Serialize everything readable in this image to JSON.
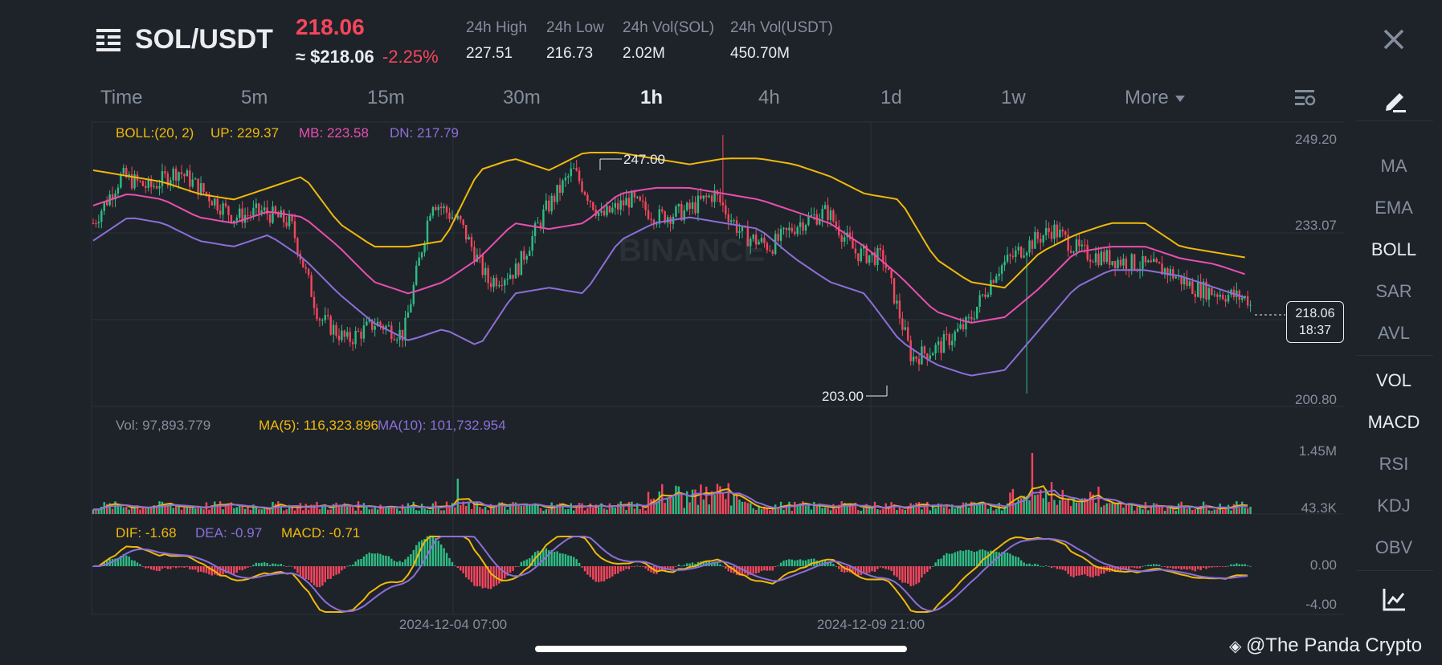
{
  "header": {
    "pair": "SOL/USDT",
    "last_price": "218.06",
    "approx_price": "≈ $218.06",
    "change_pct": "-2.25%",
    "stats": [
      {
        "label": "24h High",
        "value": "227.51"
      },
      {
        "label": "24h Low",
        "value": "216.73"
      },
      {
        "label": "24h Vol(SOL)",
        "value": "2.02M"
      },
      {
        "label": "24h Vol(USDT)",
        "value": "450.70M"
      }
    ]
  },
  "intervals": [
    {
      "label": "Time",
      "active": false
    },
    {
      "label": "5m",
      "active": false
    },
    {
      "label": "15m",
      "active": false
    },
    {
      "label": "30m",
      "active": false
    },
    {
      "label": "1h",
      "active": true
    },
    {
      "label": "4h",
      "active": false
    },
    {
      "label": "1d",
      "active": false
    },
    {
      "label": "1w",
      "active": false
    },
    {
      "label": "More",
      "active": false
    }
  ],
  "indicators": {
    "main": [
      {
        "label": "MA",
        "active": false
      },
      {
        "label": "EMA",
        "active": false
      },
      {
        "label": "BOLL",
        "active": true
      },
      {
        "label": "SAR",
        "active": false
      },
      {
        "label": "AVL",
        "active": false
      }
    ],
    "sub": [
      {
        "label": "VOL",
        "active": true
      },
      {
        "label": "MACD",
        "active": true
      },
      {
        "label": "RSI",
        "active": false
      },
      {
        "label": "KDJ",
        "active": false
      },
      {
        "label": "OBV",
        "active": false
      }
    ]
  },
  "legends": {
    "boll": {
      "name": "BOLL:(20, 2)",
      "up": "UP: 229.37",
      "mb": "MB: 223.58",
      "dn": "DN: 217.79"
    },
    "vol": {
      "vol": "Vol: 97,893.779",
      "ma5": "MA(5): 116,323.896",
      "ma10": "MA(10): 101,732.954"
    },
    "macd": {
      "dif": "DIF: -1.68",
      "dea": "DEA: -0.97",
      "macd": "MACD: -0.71"
    }
  },
  "price_axis": [
    "249.20",
    "233.07",
    "218.06",
    "200.80"
  ],
  "vol_axis": [
    "1.45M",
    "43.3K"
  ],
  "macd_axis": [
    "0.00",
    "-4.00"
  ],
  "time_axis": [
    "2024-12-04 07:00",
    "2024-12-09 21:00"
  ],
  "markers": {
    "high": "247.00",
    "low": "203.00"
  },
  "current": {
    "price": "218.06",
    "countdown": "18:37"
  },
  "watermark": "BINANCE",
  "credit": "@The Panda Crypto",
  "colors": {
    "up": "#2ebd85",
    "down": "#f6465d",
    "upper_band": "#f0b90b",
    "middle_band": "#e84fb0",
    "lower_band": "#8c6fd8",
    "bg": "#1e2329"
  },
  "chart_data": {
    "type": "candlestick",
    "symbol": "SOL/USDT",
    "interval": "1h",
    "price_range": [
      200.8,
      249.2
    ],
    "high_marker": 247.0,
    "low_marker": 203.0,
    "last": 218.06,
    "close_path": [
      232,
      240,
      238,
      241,
      237,
      233,
      234,
      232,
      216,
      212,
      215,
      213,
      236,
      232,
      222,
      224,
      234,
      241,
      233,
      236,
      233,
      234,
      237,
      230,
      228,
      232,
      234,
      227,
      226,
      209,
      211,
      215,
      224,
      228,
      231,
      227,
      226,
      225,
      224,
      221,
      220,
      219
    ],
    "boll_upper_path": [
      241,
      240,
      239,
      237,
      236,
      238,
      240,
      232,
      228,
      228,
      229,
      241,
      243,
      241,
      244,
      244,
      243,
      242,
      243,
      243,
      242,
      240,
      237,
      236,
      226,
      222,
      221,
      227,
      230,
      232,
      232,
      228,
      227,
      226
    ],
    "boll_mid_path": [
      235,
      237,
      236,
      233,
      232,
      234,
      233,
      228,
      222,
      220,
      222,
      226,
      232,
      231,
      232,
      237,
      238,
      238,
      237,
      236,
      234,
      232,
      228,
      223,
      217,
      215,
      216,
      221,
      227,
      228,
      228,
      226,
      225,
      223
    ],
    "boll_lower_path": [
      229,
      233,
      232,
      229,
      228,
      230,
      226,
      220,
      215,
      212,
      214,
      211,
      220,
      221,
      220,
      229,
      232,
      233,
      232,
      231,
      226,
      222,
      220,
      212,
      208,
      206,
      207,
      214,
      221,
      224,
      224,
      223,
      221,
      219
    ],
    "volume_range": [
      43300,
      1450000
    ],
    "macd_range": [
      -4.0,
      0.0
    ]
  }
}
